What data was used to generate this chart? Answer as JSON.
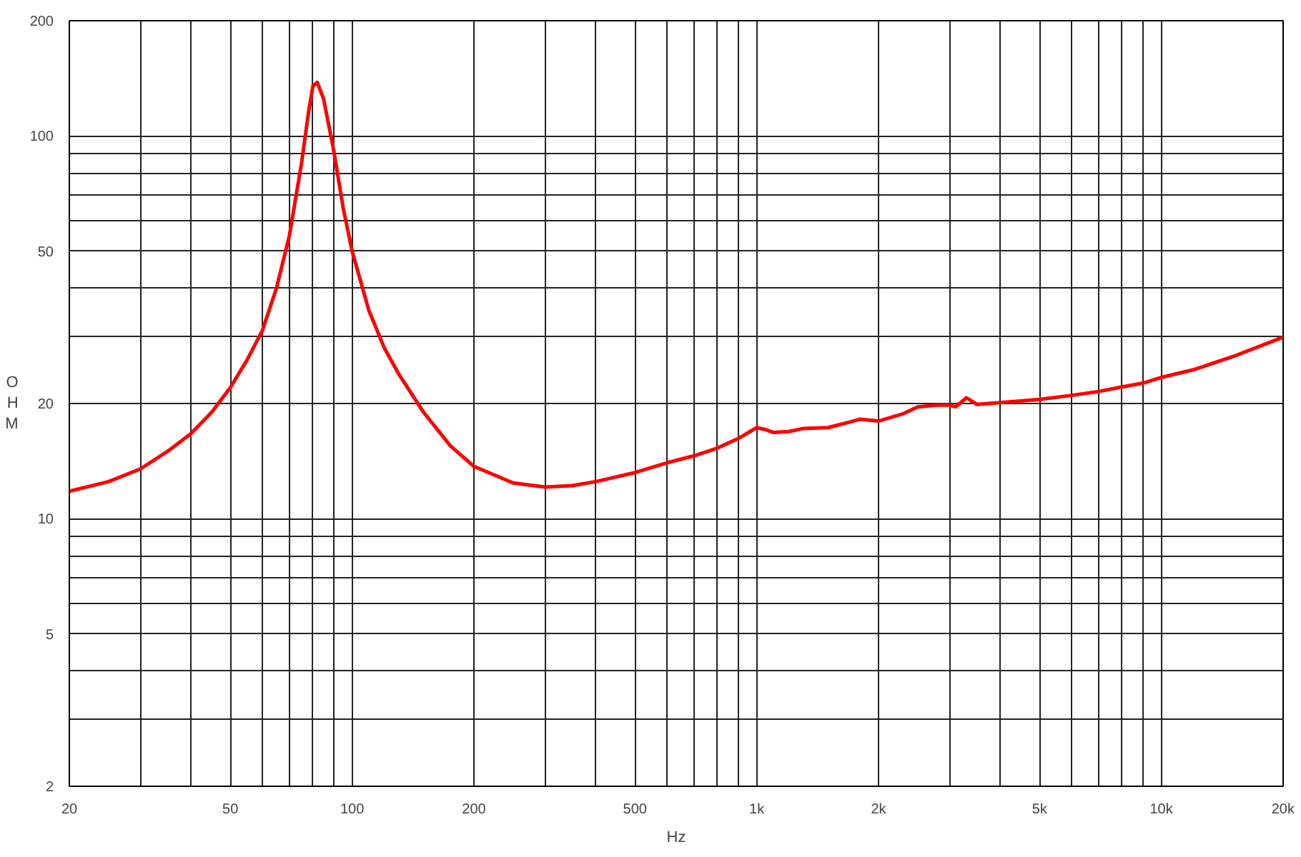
{
  "chart_data": {
    "type": "line",
    "xlabel": "Hz",
    "ylabel": "OHM",
    "log": "xy",
    "grid": true,
    "marker": "none",
    "line_style": "solid",
    "xlim": [
      20,
      20000
    ],
    "ylim": [
      2,
      200
    ],
    "xticks": [
      20,
      {
        "value": 30,
        "label": null
      },
      {
        "value": 40,
        "label": null
      },
      50,
      {
        "value": 60,
        "label": null
      },
      {
        "value": 70,
        "label": null
      },
      {
        "value": 80,
        "label": null
      },
      {
        "value": 90,
        "label": null
      },
      100,
      200,
      {
        "value": 300,
        "label": null
      },
      {
        "value": 400,
        "label": null
      },
      500,
      {
        "value": 600,
        "label": null
      },
      {
        "value": 700,
        "label": null
      },
      {
        "value": 800,
        "label": null
      },
      {
        "value": 900,
        "label": null
      },
      {
        "value": 1000,
        "label": "1k"
      },
      {
        "value": 2000,
        "label": "2k"
      },
      {
        "value": 3000,
        "label": null
      },
      {
        "value": 4000,
        "label": null
      },
      {
        "value": 5000,
        "label": "5k"
      },
      {
        "value": 6000,
        "label": null
      },
      {
        "value": 7000,
        "label": null
      },
      {
        "value": 8000,
        "label": null
      },
      {
        "value": 9000,
        "label": null
      },
      {
        "value": 10000,
        "label": "10k"
      },
      {
        "value": 20000,
        "label": "20k"
      }
    ],
    "yticks": [
      2,
      {
        "value": 3,
        "label": null
      },
      {
        "value": 4,
        "label": null
      },
      5,
      {
        "value": 6,
        "label": null
      },
      {
        "value": 7,
        "label": null
      },
      {
        "value": 8,
        "label": null
      },
      {
        "value": 9,
        "label": null
      },
      10,
      20,
      {
        "value": 30,
        "label": null
      },
      {
        "value": 40,
        "label": null
      },
      50,
      {
        "value": 60,
        "label": null
      },
      {
        "value": 70,
        "label": null
      },
      {
        "value": 80,
        "label": null
      },
      {
        "value": 90,
        "label": null
      },
      100,
      200
    ],
    "series": [
      {
        "color": "#ff0000",
        "x": [
          20,
          25,
          30,
          35,
          40,
          45,
          50,
          55,
          60,
          65,
          70,
          75,
          78,
          80,
          82,
          85,
          90,
          95,
          100,
          110,
          120,
          130,
          150,
          175,
          200,
          250,
          300,
          350,
          400,
          500,
          600,
          700,
          800,
          900,
          1000,
          1050,
          1100,
          1200,
          1300,
          1500,
          1700,
          1800,
          2000,
          2300,
          2500,
          2800,
          3000,
          3100,
          3300,
          3500,
          4000,
          5000,
          6000,
          7000,
          8000,
          9000,
          10000,
          12000,
          15000,
          20000
        ],
        "values": [
          11.8,
          12.5,
          13.5,
          15,
          16.7,
          19,
          22,
          26,
          31,
          40,
          55,
          85,
          115,
          135,
          138,
          125,
          92,
          65,
          50,
          35,
          28,
          24,
          19,
          15.5,
          13.7,
          12.4,
          12.1,
          12.2,
          12.5,
          13.2,
          14,
          14.6,
          15.3,
          16.2,
          17.3,
          17.1,
          16.8,
          16.9,
          17.2,
          17.3,
          17.9,
          18.2,
          18,
          18.8,
          19.6,
          19.8,
          19.8,
          19.6,
          20.7,
          19.9,
          20.1,
          20.5,
          21,
          21.5,
          22.1,
          22.6,
          23.4,
          24.5,
          26.5,
          29.8
        ]
      }
    ]
  }
}
